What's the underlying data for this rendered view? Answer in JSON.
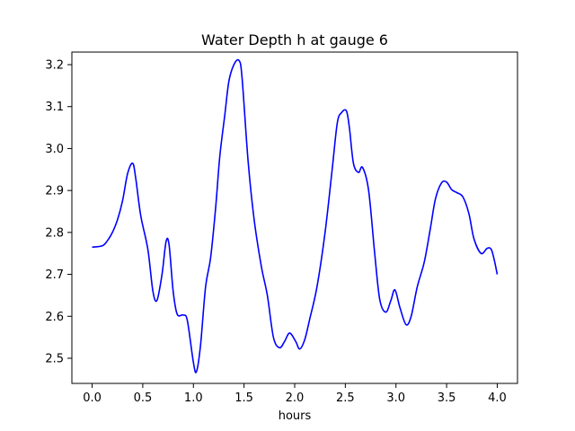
{
  "chart_data": {
    "type": "line",
    "title": "Water Depth h at gauge 6",
    "xlabel": "hours",
    "ylabel": "",
    "xlim": [
      -0.2,
      4.2
    ],
    "ylim": [
      2.44,
      3.23
    ],
    "xticks": [
      0.0,
      0.5,
      1.0,
      1.5,
      2.0,
      2.5,
      3.0,
      3.5,
      4.0
    ],
    "xtick_labels": [
      "0.0",
      "0.5",
      "1.0",
      "1.5",
      "2.0",
      "2.5",
      "3.0",
      "3.5",
      "4.0"
    ],
    "yticks": [
      2.5,
      2.6,
      2.7,
      2.8,
      2.9,
      3.0,
      3.1,
      3.2
    ],
    "ytick_labels": [
      "2.5",
      "2.6",
      "2.7",
      "2.8",
      "2.9",
      "3.0",
      "3.1",
      "3.2"
    ],
    "grid": false,
    "series": [
      {
        "color": "#0000ff",
        "points": [
          [
            0.0,
            2.765
          ],
          [
            0.1,
            2.768
          ],
          [
            0.15,
            2.78
          ],
          [
            0.2,
            2.8
          ],
          [
            0.25,
            2.83
          ],
          [
            0.3,
            2.875
          ],
          [
            0.35,
            2.94
          ],
          [
            0.4,
            2.965
          ],
          [
            0.43,
            2.93
          ],
          [
            0.48,
            2.84
          ],
          [
            0.55,
            2.76
          ],
          [
            0.6,
            2.66
          ],
          [
            0.64,
            2.638
          ],
          [
            0.69,
            2.7
          ],
          [
            0.73,
            2.778
          ],
          [
            0.76,
            2.77
          ],
          [
            0.8,
            2.66
          ],
          [
            0.84,
            2.605
          ],
          [
            0.9,
            2.603
          ],
          [
            0.94,
            2.59
          ],
          [
            1.0,
            2.49
          ],
          [
            1.03,
            2.468
          ],
          [
            1.07,
            2.53
          ],
          [
            1.12,
            2.67
          ],
          [
            1.17,
            2.74
          ],
          [
            1.22,
            2.86
          ],
          [
            1.26,
            2.98
          ],
          [
            1.31,
            3.08
          ],
          [
            1.35,
            3.16
          ],
          [
            1.4,
            3.2
          ],
          [
            1.45,
            3.21
          ],
          [
            1.48,
            3.17
          ],
          [
            1.54,
            2.97
          ],
          [
            1.6,
            2.83
          ],
          [
            1.67,
            2.72
          ],
          [
            1.73,
            2.65
          ],
          [
            1.79,
            2.55
          ],
          [
            1.85,
            2.525
          ],
          [
            1.9,
            2.54
          ],
          [
            1.95,
            2.56
          ],
          [
            2.01,
            2.54
          ],
          [
            2.05,
            2.522
          ],
          [
            2.1,
            2.545
          ],
          [
            2.15,
            2.595
          ],
          [
            2.22,
            2.67
          ],
          [
            2.3,
            2.8
          ],
          [
            2.37,
            2.95
          ],
          [
            2.42,
            3.06
          ],
          [
            2.46,
            3.085
          ],
          [
            2.51,
            3.09
          ],
          [
            2.54,
            3.05
          ],
          [
            2.58,
            2.965
          ],
          [
            2.63,
            2.943
          ],
          [
            2.67,
            2.955
          ],
          [
            2.73,
            2.9
          ],
          [
            2.79,
            2.75
          ],
          [
            2.84,
            2.64
          ],
          [
            2.9,
            2.61
          ],
          [
            2.95,
            2.638
          ],
          [
            2.99,
            2.663
          ],
          [
            3.04,
            2.62
          ],
          [
            3.1,
            2.58
          ],
          [
            3.15,
            2.6
          ],
          [
            3.21,
            2.67
          ],
          [
            3.28,
            2.73
          ],
          [
            3.34,
            2.81
          ],
          [
            3.39,
            2.88
          ],
          [
            3.45,
            2.918
          ],
          [
            3.5,
            2.92
          ],
          [
            3.55,
            2.902
          ],
          [
            3.6,
            2.895
          ],
          [
            3.66,
            2.885
          ],
          [
            3.72,
            2.845
          ],
          [
            3.77,
            2.785
          ],
          [
            3.84,
            2.75
          ],
          [
            3.9,
            2.762
          ],
          [
            3.94,
            2.76
          ],
          [
            3.97,
            2.735
          ],
          [
            4.0,
            2.7
          ]
        ]
      }
    ]
  }
}
